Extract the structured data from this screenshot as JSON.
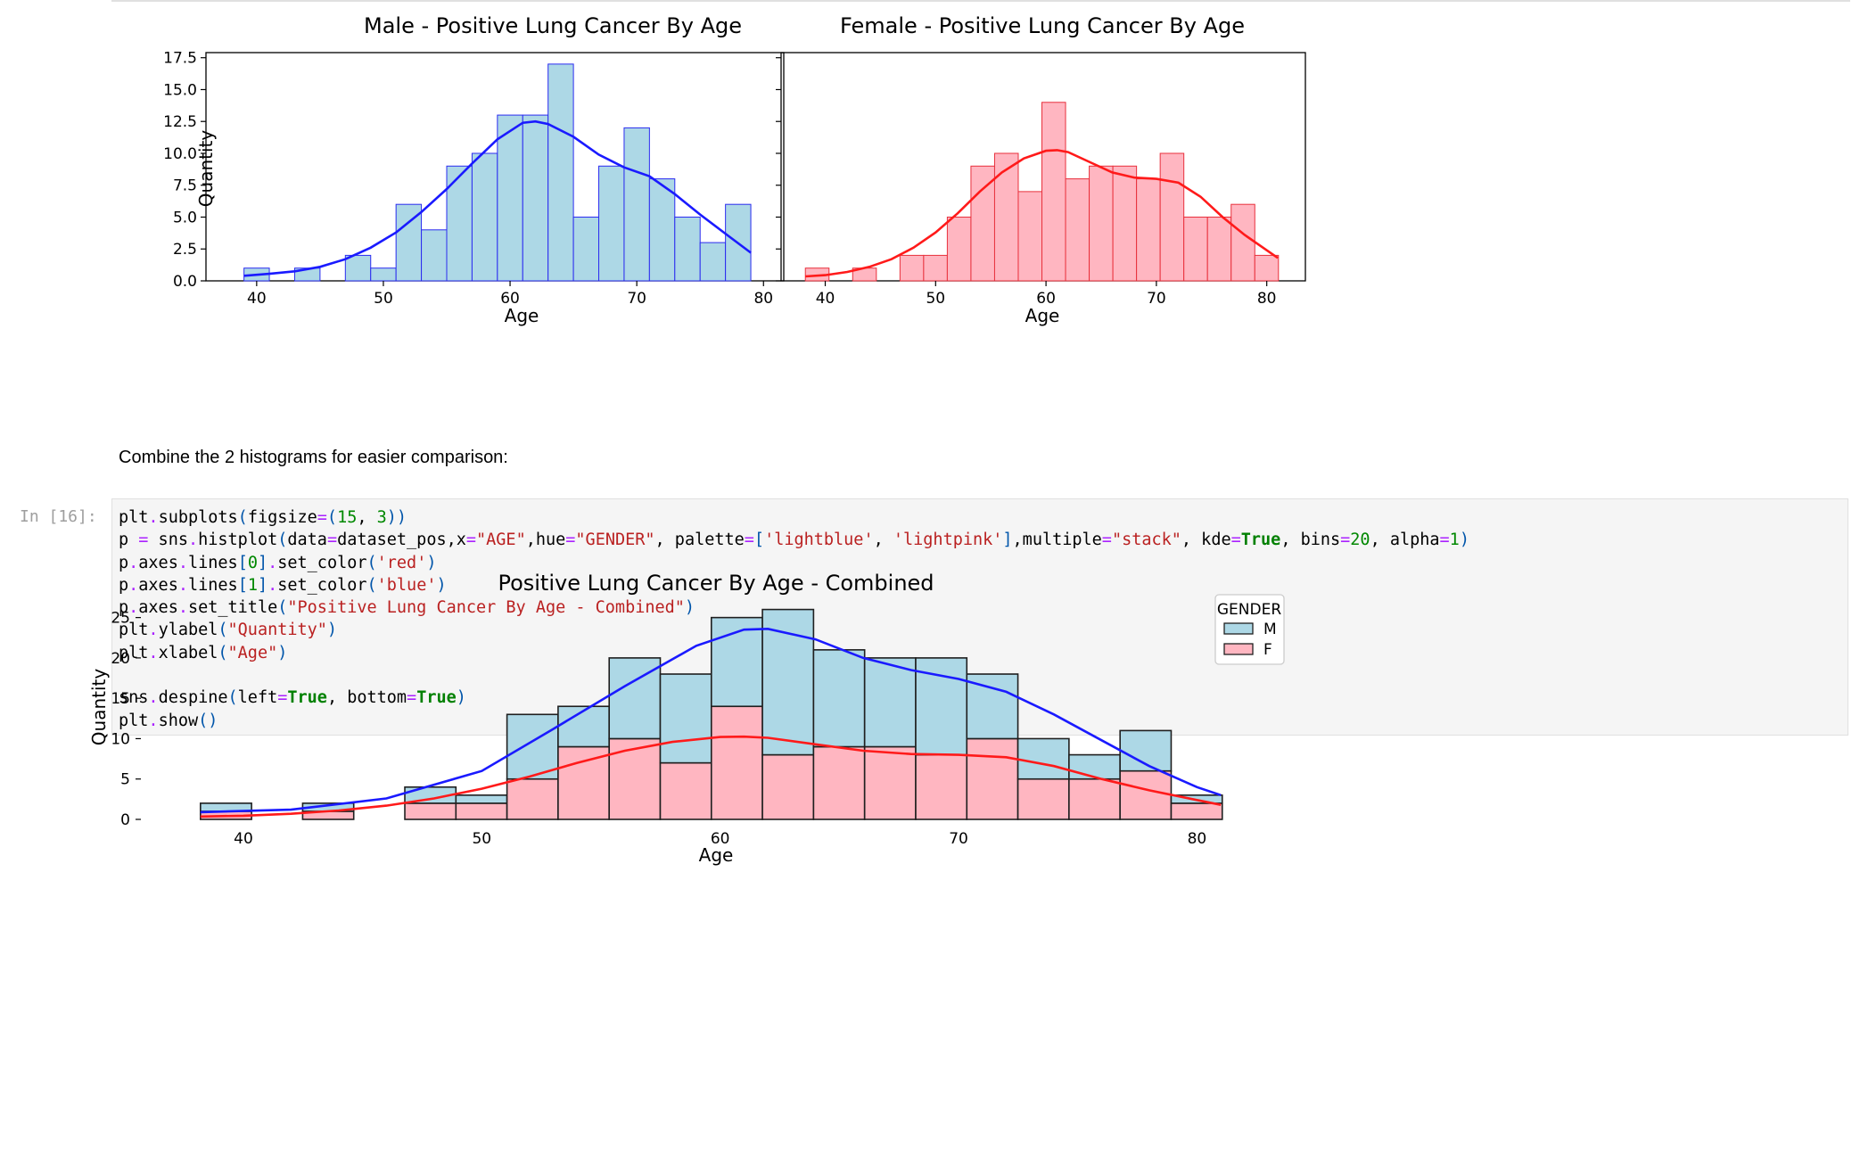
{
  "code_cell": {
    "prompt": "In [16]:",
    "lines": [
      [
        [
          "plt",
          "nm"
        ],
        [
          ".",
          "op"
        ],
        [
          "subplots",
          "nm"
        ],
        [
          "(",
          "pn"
        ],
        [
          "figsize",
          "nm"
        ],
        [
          "=",
          "op"
        ],
        [
          "(",
          "pn"
        ],
        [
          "15",
          "num"
        ],
        [
          ", ",
          "nm"
        ],
        [
          "3",
          "num"
        ],
        [
          "))",
          "pn"
        ]
      ],
      [
        [
          "p ",
          "nm"
        ],
        [
          "=",
          "op"
        ],
        [
          " sns",
          "nm"
        ],
        [
          ".",
          "op"
        ],
        [
          "histplot",
          "nm"
        ],
        [
          "(",
          "pn"
        ],
        [
          "data",
          "nm"
        ],
        [
          "=",
          "op"
        ],
        [
          "dataset_pos,x",
          "nm"
        ],
        [
          "=",
          "op"
        ],
        [
          "\"AGE\"",
          "str"
        ],
        [
          ",hue",
          "nm"
        ],
        [
          "=",
          "op"
        ],
        [
          "\"GENDER\"",
          "str"
        ],
        [
          ", palette",
          "nm"
        ],
        [
          "=",
          "op"
        ],
        [
          "[",
          "pn"
        ],
        [
          "'lightblue'",
          "str"
        ],
        [
          ", ",
          "nm"
        ],
        [
          "'lightpink'",
          "str"
        ],
        [
          "]",
          "pn"
        ],
        [
          ",multiple",
          "nm"
        ],
        [
          "=",
          "op"
        ],
        [
          "\"stack\"",
          "str"
        ],
        [
          ", kde",
          "nm"
        ],
        [
          "=",
          "op"
        ],
        [
          "True",
          "kw"
        ],
        [
          ", bins",
          "nm"
        ],
        [
          "=",
          "op"
        ],
        [
          "20",
          "num"
        ],
        [
          ", alpha",
          "nm"
        ],
        [
          "=",
          "op"
        ],
        [
          "1",
          "num"
        ],
        [
          ")",
          "pn"
        ]
      ],
      [
        [
          "p",
          "nm"
        ],
        [
          ".",
          "op"
        ],
        [
          "axes",
          "nm"
        ],
        [
          ".",
          "op"
        ],
        [
          "lines",
          "nm"
        ],
        [
          "[",
          "pn"
        ],
        [
          "0",
          "num"
        ],
        [
          "]",
          "pn"
        ],
        [
          ".",
          "op"
        ],
        [
          "set_color",
          "nm"
        ],
        [
          "(",
          "pn"
        ],
        [
          "'red'",
          "str"
        ],
        [
          ")",
          "pn"
        ]
      ],
      [
        [
          "p",
          "nm"
        ],
        [
          ".",
          "op"
        ],
        [
          "axes",
          "nm"
        ],
        [
          ".",
          "op"
        ],
        [
          "lines",
          "nm"
        ],
        [
          "[",
          "pn"
        ],
        [
          "1",
          "num"
        ],
        [
          "]",
          "pn"
        ],
        [
          ".",
          "op"
        ],
        [
          "set_color",
          "nm"
        ],
        [
          "(",
          "pn"
        ],
        [
          "'blue'",
          "str"
        ],
        [
          ")",
          "pn"
        ]
      ],
      [
        [
          "p",
          "nm"
        ],
        [
          ".",
          "op"
        ],
        [
          "axes",
          "nm"
        ],
        [
          ".",
          "op"
        ],
        [
          "set_title",
          "nm"
        ],
        [
          "(",
          "pn"
        ],
        [
          "\"Positive Lung Cancer By Age - Combined\"",
          "str"
        ],
        [
          ")",
          "pn"
        ]
      ],
      [
        [
          "plt",
          "nm"
        ],
        [
          ".",
          "op"
        ],
        [
          "ylabel",
          "nm"
        ],
        [
          "(",
          "pn"
        ],
        [
          "\"Quantity\"",
          "str"
        ],
        [
          ")",
          "pn"
        ]
      ],
      [
        [
          "plt",
          "nm"
        ],
        [
          ".",
          "op"
        ],
        [
          "xlabel",
          "nm"
        ],
        [
          "(",
          "pn"
        ],
        [
          "\"Age\"",
          "str"
        ],
        [
          ")",
          "pn"
        ]
      ],
      [],
      [
        [
          "sns",
          "nm"
        ],
        [
          ".",
          "op"
        ],
        [
          "despine",
          "nm"
        ],
        [
          "(",
          "pn"
        ],
        [
          "left",
          "nm"
        ],
        [
          "=",
          "op"
        ],
        [
          "True",
          "kw"
        ],
        [
          ", bottom",
          "nm"
        ],
        [
          "=",
          "op"
        ],
        [
          "True",
          "kw"
        ],
        [
          ")",
          "pn"
        ]
      ],
      [
        [
          "plt",
          "nm"
        ],
        [
          ".",
          "op"
        ],
        [
          "show",
          "nm"
        ],
        [
          "()",
          "pn"
        ]
      ]
    ]
  },
  "markdown_text": "Combine the 2 histograms for easier comparison:",
  "colors": {
    "male_fill": "#add8e6",
    "female_fill": "#ffb6c1",
    "male_edge": "#2b2bf0",
    "female_edge": "#e8303c",
    "kde_male": "#1a1aff",
    "kde_female": "#ff1a1a",
    "combined_edge": "#1f1f1f"
  },
  "chart_data": [
    {
      "type": "bar",
      "title": "Male - Positive Lung Cancer By Age",
      "xlabel": "Age",
      "ylabel": "Quantity",
      "xlim": [
        36,
        81.6
      ],
      "ylim": [
        0,
        17.9
      ],
      "xticks": [
        "40",
        "50",
        "60",
        "70",
        "80"
      ],
      "yticks": [
        "0.0",
        "2.5",
        "5.0",
        "7.5",
        "10.0",
        "12.5",
        "15.0",
        "17.5"
      ],
      "bin_start": 39,
      "bin_width": 2,
      "values": [
        1,
        0,
        1,
        0,
        2,
        1,
        6,
        4,
        9,
        10,
        13,
        13,
        17,
        5,
        9,
        12,
        8,
        5,
        3,
        6
      ],
      "kde": [
        [
          39,
          0.4
        ],
        [
          41,
          0.55
        ],
        [
          43,
          0.75
        ],
        [
          45,
          1.1
        ],
        [
          47,
          1.7
        ],
        [
          49,
          2.6
        ],
        [
          51,
          3.8
        ],
        [
          53,
          5.4
        ],
        [
          55,
          7.2
        ],
        [
          57,
          9.2
        ],
        [
          59,
          11.1
        ],
        [
          61,
          12.4
        ],
        [
          62,
          12.5
        ],
        [
          63,
          12.3
        ],
        [
          65,
          11.3
        ],
        [
          67,
          9.9
        ],
        [
          69,
          8.9
        ],
        [
          71,
          8.2
        ],
        [
          73,
          6.8
        ],
        [
          75,
          5.2
        ],
        [
          77,
          3.7
        ],
        [
          79,
          2.2
        ]
      ]
    },
    {
      "type": "bar",
      "title": "Female - Positive Lung Cancer By Age",
      "xlabel": "Age",
      "ylabel": "",
      "xlim": [
        36,
        83.5
      ],
      "ylim": [
        0,
        17.9
      ],
      "xticks": [
        "40",
        "50",
        "60",
        "70",
        "80"
      ],
      "yticks": [],
      "bin_start": 38.2,
      "bin_width": 2.143,
      "values": [
        1,
        0,
        1,
        0,
        2,
        2,
        5,
        9,
        10,
        7,
        14,
        8,
        9,
        9,
        8,
        10,
        5,
        5,
        6,
        2
      ],
      "kde": [
        [
          38.2,
          0.35
        ],
        [
          40,
          0.45
        ],
        [
          42,
          0.7
        ],
        [
          44,
          1.1
        ],
        [
          46,
          1.7
        ],
        [
          48,
          2.6
        ],
        [
          50,
          3.8
        ],
        [
          52,
          5.3
        ],
        [
          54,
          7.0
        ],
        [
          56,
          8.5
        ],
        [
          58,
          9.6
        ],
        [
          60,
          10.2
        ],
        [
          61,
          10.25
        ],
        [
          62,
          10.1
        ],
        [
          64,
          9.3
        ],
        [
          66,
          8.5
        ],
        [
          68,
          8.1
        ],
        [
          70,
          8.0
        ],
        [
          72,
          7.7
        ],
        [
          74,
          6.6
        ],
        [
          76,
          5.0
        ],
        [
          78,
          3.6
        ],
        [
          80,
          2.4
        ],
        [
          81,
          1.8
        ]
      ]
    },
    {
      "type": "bar",
      "title": "Positive Lung Cancer By Age - Combined",
      "xlabel": "Age",
      "ylabel": "Quantity",
      "xlim": [
        36,
        83.5
      ],
      "ylim": [
        0,
        27.5
      ],
      "xticks": [
        "40",
        "50",
        "60",
        "70",
        "80"
      ],
      "yticks": [
        "0",
        "5",
        "10",
        "15",
        "20",
        "25"
      ],
      "bin_start": 38.2,
      "bin_width": 2.143,
      "legend": {
        "title": "GENDER",
        "location": "top-right",
        "entries": [
          "M",
          "F"
        ]
      },
      "series": [
        {
          "name": "M",
          "values": [
            1,
            0,
            1,
            0,
            2,
            1,
            8,
            5,
            10,
            11,
            11,
            18,
            12,
            11,
            12,
            8,
            5,
            3,
            5,
            1
          ]
        },
        {
          "name": "F",
          "values": [
            1,
            0,
            1,
            0,
            2,
            2,
            5,
            9,
            10,
            7,
            14,
            8,
            9,
            9,
            8,
            10,
            5,
            5,
            6,
            2
          ]
        }
      ],
      "totals": [
        2,
        0,
        2,
        0,
        4,
        3,
        13,
        14,
        20,
        18,
        25,
        26,
        21,
        20,
        20,
        18,
        10,
        8,
        11,
        3
      ],
      "kde_total": [
        [
          38.2,
          0.9
        ],
        [
          42,
          1.2
        ],
        [
          46,
          2.6
        ],
        [
          50,
          6.0
        ],
        [
          53,
          11.2
        ],
        [
          56,
          16.5
        ],
        [
          59,
          21.5
        ],
        [
          61,
          23.5
        ],
        [
          62,
          23.6
        ],
        [
          64,
          22.3
        ],
        [
          66,
          20.0
        ],
        [
          68,
          18.5
        ],
        [
          70,
          17.4
        ],
        [
          72,
          15.8
        ],
        [
          74,
          13.0
        ],
        [
          76,
          9.8
        ],
        [
          78,
          6.6
        ],
        [
          80,
          4.0
        ],
        [
          81,
          3.0
        ]
      ],
      "kde_female": [
        [
          38.2,
          0.35
        ],
        [
          40,
          0.45
        ],
        [
          42,
          0.7
        ],
        [
          44,
          1.1
        ],
        [
          46,
          1.7
        ],
        [
          48,
          2.6
        ],
        [
          50,
          3.8
        ],
        [
          52,
          5.3
        ],
        [
          54,
          7.0
        ],
        [
          56,
          8.5
        ],
        [
          58,
          9.6
        ],
        [
          60,
          10.2
        ],
        [
          61,
          10.25
        ],
        [
          62,
          10.1
        ],
        [
          64,
          9.3
        ],
        [
          66,
          8.5
        ],
        [
          68,
          8.1
        ],
        [
          70,
          8.0
        ],
        [
          72,
          7.7
        ],
        [
          74,
          6.6
        ],
        [
          76,
          5.0
        ],
        [
          78,
          3.6
        ],
        [
          80,
          2.4
        ],
        [
          81,
          1.8
        ]
      ]
    }
  ]
}
